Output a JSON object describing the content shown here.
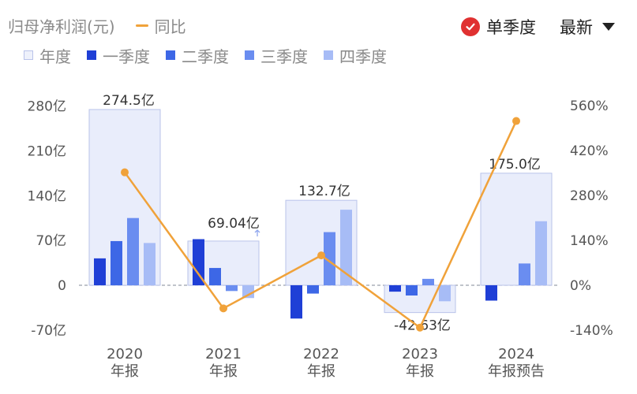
{
  "header": {
    "series_title": "归母净利润(元)",
    "yoy_label": "同比",
    "quarter_toggle_label": "单季度",
    "sort_label": "最新"
  },
  "legend": {
    "annual": "年度",
    "q1": "一季度",
    "q2": "二季度",
    "q3": "三季度",
    "q4": "四季度"
  },
  "colors": {
    "annual_fill": "#e9edfb",
    "annual_stroke": "#b9c3ea",
    "q1": "#1f3fd6",
    "q2": "#3d67e6",
    "q3": "#6a8df0",
    "q4": "#a7bcf6",
    "yoy_line": "#f0a23a",
    "axis_text": "#555555",
    "check_red": "#e03131"
  },
  "chart_data": {
    "type": "bar",
    "categories": [
      "2020\n年报",
      "2021\n年报",
      "2022\n年报",
      "2023\n年报",
      "2024\n年报预告"
    ],
    "left_axis": {
      "ticks": [
        "280亿",
        "210亿",
        "140亿",
        "70亿",
        "0",
        "-70亿"
      ],
      "range": [
        -70,
        280
      ],
      "unit": "亿"
    },
    "right_axis": {
      "ticks": [
        "560%",
        "420%",
        "280%",
        "140%",
        "0%",
        "-140%"
      ],
      "range": [
        -140,
        560
      ],
      "unit": "%"
    },
    "annual": [
      274.5,
      69.04,
      132.7,
      -42.63,
      175.0
    ],
    "annual_labels": [
      "274.5亿",
      "69.04亿",
      "132.7亿",
      "-42.63亿",
      "175.0亿"
    ],
    "series": [
      {
        "name": "一季度",
        "values": [
          42,
          72,
          -52,
          -10,
          -24
        ]
      },
      {
        "name": "二季度",
        "values": [
          69,
          27,
          -13,
          -16,
          null
        ]
      },
      {
        "name": "三季度",
        "values": [
          105,
          -9,
          83,
          10,
          34
        ]
      },
      {
        "name": "四季度",
        "values": [
          66,
          -20,
          118,
          -25,
          100
        ]
      }
    ],
    "yoy": {
      "name": "同比",
      "values": [
        352,
        -72,
        93,
        -132,
        512
      ]
    },
    "grid": false,
    "legend_position": "top-left"
  }
}
